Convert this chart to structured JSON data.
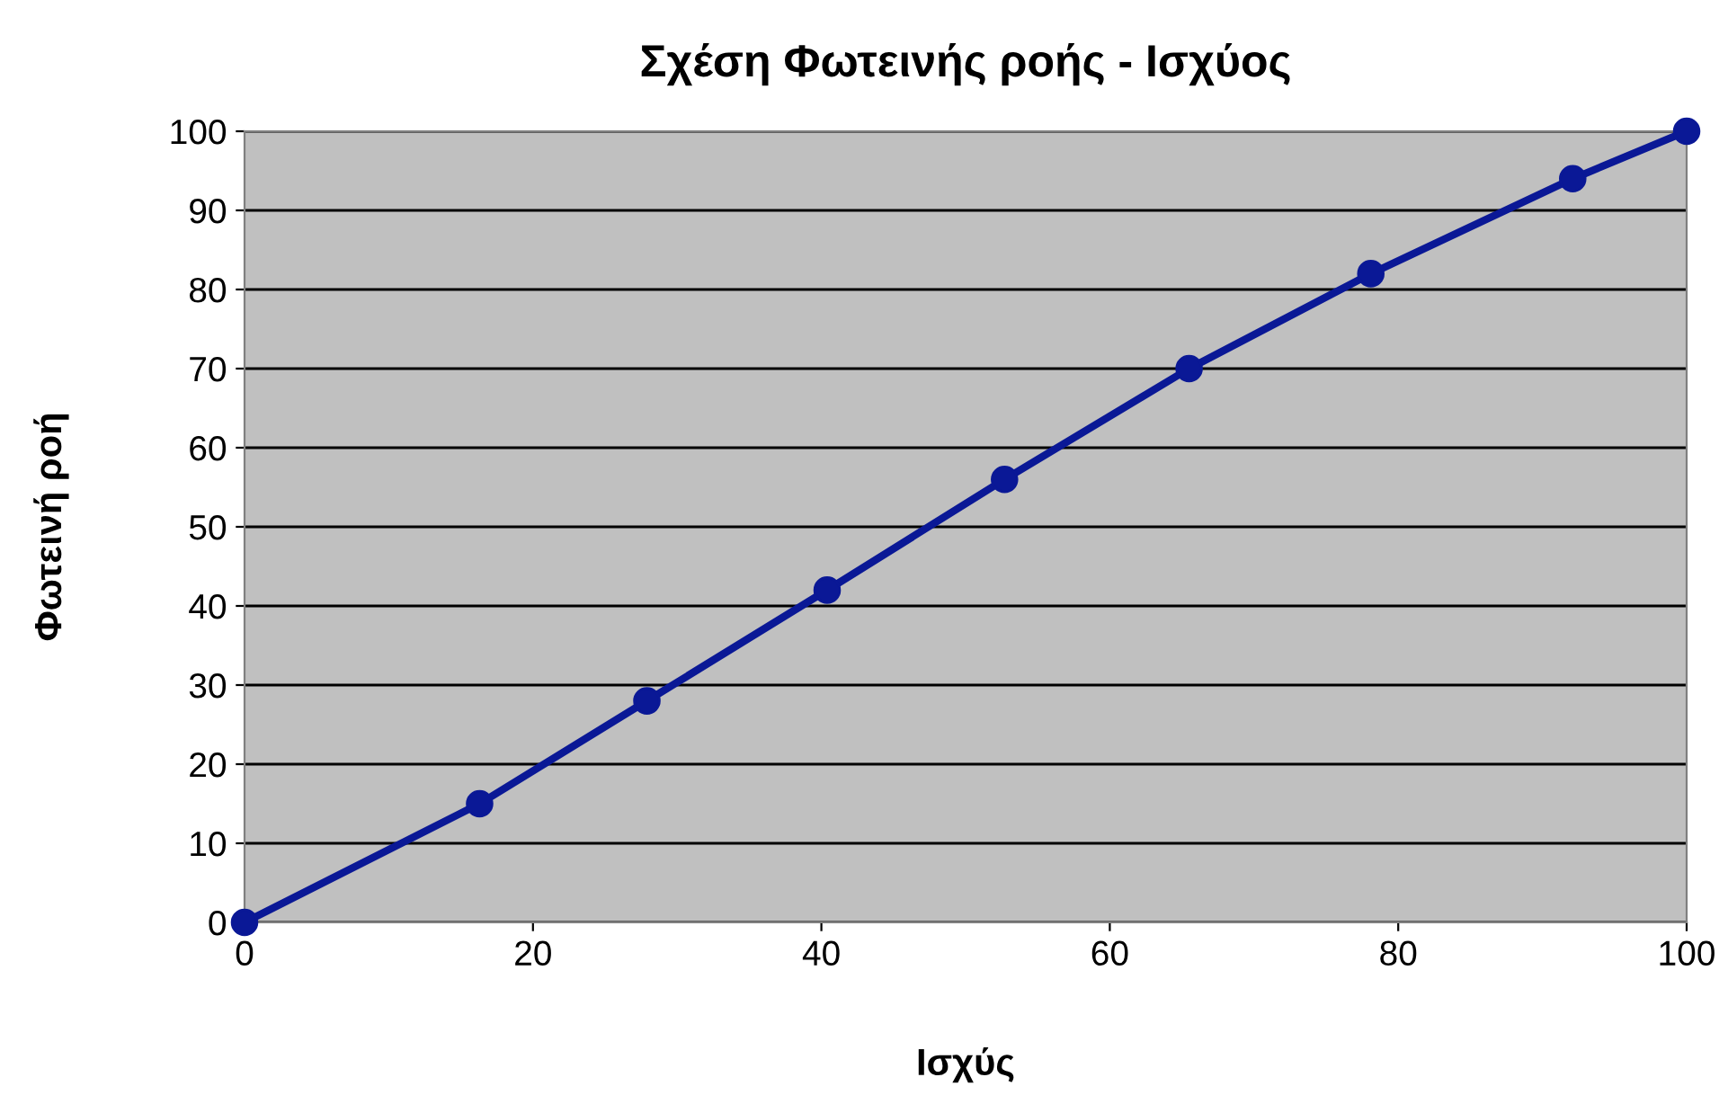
{
  "chart_data": {
    "type": "line",
    "title": "Σχέση Φωτεινής ροής - Ισχύος",
    "xlabel": "Ισχύς",
    "ylabel": "Φωτεινή ροή",
    "x": [
      0,
      16.3,
      27.9,
      40.4,
      52.7,
      65.5,
      78.1,
      92.1,
      100
    ],
    "series": [
      {
        "color": "#0a1896",
        "values": [
          0,
          15,
          28,
          42,
          56,
          70,
          82,
          94,
          100
        ]
      }
    ],
    "xlim": [
      0,
      100
    ],
    "xticks": [
      0,
      20,
      40,
      60,
      80,
      100
    ],
    "ylim": [
      0,
      100
    ],
    "yticks": [
      0,
      10,
      20,
      30,
      40,
      50,
      60,
      70,
      80,
      90,
      100
    ],
    "grid": "y",
    "marker": "circle",
    "line_style": "solid"
  }
}
